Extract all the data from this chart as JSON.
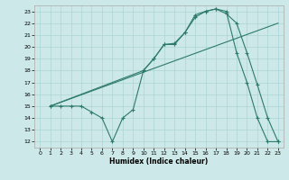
{
  "xlabel": "Humidex (Indice chaleur)",
  "bg_color": "#cce8e8",
  "grid_color": "#aad4d4",
  "line_color": "#2d7a6b",
  "xlim": [
    -0.5,
    23.5
  ],
  "ylim": [
    11.5,
    23.5
  ],
  "yticks": [
    12,
    13,
    14,
    15,
    16,
    17,
    18,
    19,
    20,
    21,
    22,
    23
  ],
  "xticks": [
    0,
    1,
    2,
    3,
    4,
    5,
    6,
    7,
    8,
    9,
    10,
    11,
    12,
    13,
    14,
    15,
    16,
    17,
    18,
    19,
    20,
    21,
    22,
    23
  ],
  "line1_x": [
    1,
    2,
    3,
    4,
    5,
    6,
    7,
    8,
    9,
    10,
    11,
    12,
    13,
    14,
    15,
    16,
    17,
    18,
    19,
    20,
    21,
    22,
    23
  ],
  "line1_y": [
    15,
    15,
    15,
    15,
    14.5,
    14,
    12,
    14,
    14.7,
    18,
    19,
    20.2,
    20.2,
    21.2,
    22.7,
    23.0,
    23.2,
    23.0,
    19.5,
    17.0,
    14,
    12,
    12
  ],
  "line2_x": [
    1,
    23
  ],
  "line2_y": [
    15,
    22
  ],
  "line3_x": [
    1,
    10,
    11,
    12,
    13,
    14,
    15,
    16,
    17,
    18,
    19,
    20,
    21,
    22,
    23
  ],
  "line3_y": [
    15,
    18.0,
    19.0,
    20.2,
    20.3,
    21.2,
    22.5,
    23.0,
    23.2,
    22.8,
    22.0,
    19.5,
    16.8,
    14.0,
    12.0
  ]
}
